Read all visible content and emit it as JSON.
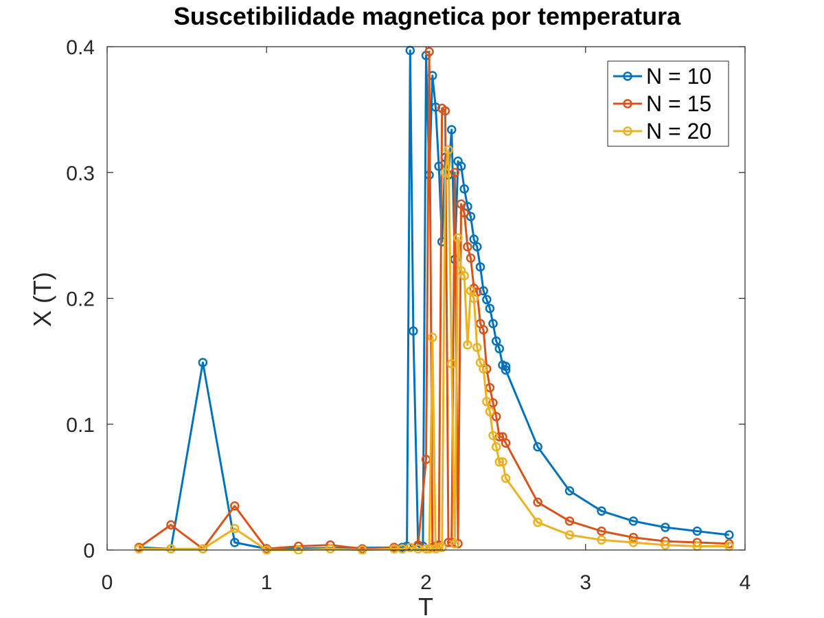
{
  "chart_data": {
    "type": "line",
    "title": "Suscetibilidade magnetica por temperatura",
    "xlabel": "T",
    "ylabel": "X (T)",
    "xlim": [
      0,
      4
    ],
    "ylim": [
      0,
      0.4
    ],
    "xticks": [
      0,
      1,
      2,
      3,
      4
    ],
    "yticks": [
      0,
      0.1,
      0.2,
      0.3,
      0.4
    ],
    "xtick_labels": [
      "0",
      "1",
      "2",
      "3",
      "4"
    ],
    "ytick_labels": [
      "0",
      "0.1",
      "0.2",
      "0.3",
      "0.4"
    ],
    "grid": false,
    "legend_position": "top-right",
    "series": [
      {
        "name": "N = 10",
        "color": "#0072BD",
        "points": [
          [
            0.2,
            0.002
          ],
          [
            0.4,
            0.001
          ],
          [
            0.6,
            0.149
          ],
          [
            0.8,
            0.006
          ],
          [
            1.0,
            0.001
          ],
          [
            1.8,
            0.002
          ],
          [
            1.85,
            0.002
          ],
          [
            1.88,
            0.003
          ],
          [
            1.9,
            0.397
          ],
          [
            1.92,
            0.174
          ],
          [
            1.95,
            0.003
          ],
          [
            1.98,
            0.003
          ],
          [
            2.0,
            0.393
          ],
          [
            2.02,
            0.298
          ],
          [
            2.04,
            0.377
          ],
          [
            2.06,
            0.352
          ],
          [
            2.08,
            0.305
          ],
          [
            2.1,
            0.245
          ],
          [
            2.12,
            0.312
          ],
          [
            2.14,
            0.298
          ],
          [
            2.16,
            0.334
          ],
          [
            2.18,
            0.231
          ],
          [
            2.2,
            0.309
          ],
          [
            2.22,
            0.305
          ],
          [
            2.24,
            0.287
          ],
          [
            2.26,
            0.273
          ],
          [
            2.28,
            0.265
          ],
          [
            2.3,
            0.247
          ],
          [
            2.32,
            0.241
          ],
          [
            2.34,
            0.225
          ],
          [
            2.36,
            0.206
          ],
          [
            2.38,
            0.199
          ],
          [
            2.4,
            0.192
          ],
          [
            2.42,
            0.18
          ],
          [
            2.44,
            0.166
          ],
          [
            2.46,
            0.16
          ],
          [
            2.48,
            0.147
          ],
          [
            2.5,
            0.146
          ],
          [
            2.5,
            0.143
          ],
          [
            2.7,
            0.082
          ],
          [
            2.9,
            0.047
          ],
          [
            3.1,
            0.031
          ],
          [
            3.3,
            0.023
          ],
          [
            3.5,
            0.018
          ],
          [
            3.7,
            0.015
          ],
          [
            3.9,
            0.012
          ]
        ]
      },
      {
        "name": "N = 15",
        "color": "#D95319",
        "points": [
          [
            0.2,
            0.002
          ],
          [
            0.4,
            0.02
          ],
          [
            0.6,
            0.001
          ],
          [
            0.8,
            0.035
          ],
          [
            1.0,
            0.001
          ],
          [
            1.2,
            0.003
          ],
          [
            1.4,
            0.004
          ],
          [
            1.6,
            0.001
          ],
          [
            1.8,
            0.002
          ],
          [
            1.85,
            0.001
          ],
          [
            1.9,
            0.002
          ],
          [
            1.95,
            0.004
          ],
          [
            2.0,
            0.072
          ],
          [
            2.02,
            0.396
          ],
          [
            2.04,
            0.002
          ],
          [
            2.06,
            0.003
          ],
          [
            2.08,
            0.004
          ],
          [
            2.1,
            0.351
          ],
          [
            2.12,
            0.349
          ],
          [
            2.14,
            0.006
          ],
          [
            2.16,
            0.006
          ],
          [
            2.18,
            0.3
          ],
          [
            2.2,
            0.005
          ],
          [
            2.22,
            0.275
          ],
          [
            2.24,
            0.268
          ],
          [
            2.26,
            0.241
          ],
          [
            2.28,
            0.232
          ],
          [
            2.3,
            0.208
          ],
          [
            2.32,
            0.205
          ],
          [
            2.34,
            0.18
          ],
          [
            2.36,
            0.175
          ],
          [
            2.38,
            0.144
          ],
          [
            2.4,
            0.129
          ],
          [
            2.42,
            0.117
          ],
          [
            2.44,
            0.106
          ],
          [
            2.46,
            0.09
          ],
          [
            2.48,
            0.09
          ],
          [
            2.5,
            0.085
          ],
          [
            2.7,
            0.038
          ],
          [
            2.9,
            0.023
          ],
          [
            3.1,
            0.015
          ],
          [
            3.3,
            0.01
          ],
          [
            3.5,
            0.007
          ],
          [
            3.7,
            0.006
          ],
          [
            3.9,
            0.005
          ]
        ]
      },
      {
        "name": "N = 20",
        "color": "#EDB120",
        "points": [
          [
            0.2,
            0.001
          ],
          [
            0.4,
            0.001
          ],
          [
            0.6,
            0.001
          ],
          [
            0.8,
            0.017
          ],
          [
            1.0,
            0.0
          ],
          [
            1.2,
            0.0
          ],
          [
            1.4,
            0.001
          ],
          [
            1.6,
            0.0
          ],
          [
            1.8,
            0.001
          ],
          [
            1.85,
            0.001
          ],
          [
            1.9,
            0.002
          ],
          [
            1.95,
            0.001
          ],
          [
            2.0,
            0.001
          ],
          [
            2.02,
            0.001
          ],
          [
            2.04,
            0.169
          ],
          [
            2.06,
            0.001
          ],
          [
            2.08,
            0.002
          ],
          [
            2.1,
            0.002
          ],
          [
            2.12,
            0.3
          ],
          [
            2.14,
            0.318
          ],
          [
            2.16,
            0.148
          ],
          [
            2.18,
            0.005
          ],
          [
            2.2,
            0.248
          ],
          [
            2.22,
            0.222
          ],
          [
            2.24,
            0.218
          ],
          [
            2.26,
            0.163
          ],
          [
            2.28,
            0.206
          ],
          [
            2.3,
            0.2
          ],
          [
            2.32,
            0.161
          ],
          [
            2.34,
            0.149
          ],
          [
            2.36,
            0.144
          ],
          [
            2.38,
            0.118
          ],
          [
            2.4,
            0.11
          ],
          [
            2.42,
            0.091
          ],
          [
            2.44,
            0.082
          ],
          [
            2.46,
            0.07
          ],
          [
            2.48,
            0.07
          ],
          [
            2.5,
            0.057
          ],
          [
            2.7,
            0.022
          ],
          [
            2.9,
            0.012
          ],
          [
            3.1,
            0.008
          ],
          [
            3.3,
            0.006
          ],
          [
            3.5,
            0.004
          ],
          [
            3.7,
            0.003
          ],
          [
            3.9,
            0.003
          ]
        ]
      }
    ]
  }
}
